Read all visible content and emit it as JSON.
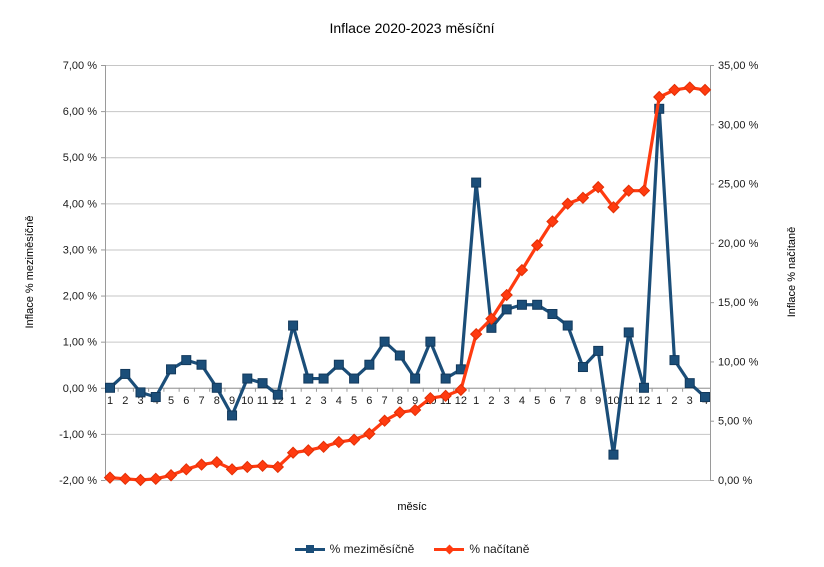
{
  "chart_data": {
    "type": "line",
    "title": "Inflace 2020-2023 měsíční",
    "xlabel": "měsíc",
    "left_axis": {
      "title": "Inflace % meziměsíčně",
      "min": -2,
      "max": 7,
      "tick_labels": [
        "7,00 %",
        "6,00 %",
        "5,00 %",
        "4,00 %",
        "3,00 %",
        "2,00 %",
        "1,00 %",
        "0,00 %",
        "-1,00 %",
        "-2,00 %"
      ],
      "tick_values": [
        7,
        6,
        5,
        4,
        3,
        2,
        1,
        0,
        -1,
        -2
      ]
    },
    "right_axis": {
      "title": "Inflace % načítaně",
      "min": 0,
      "max": 35,
      "tick_labels": [
        "35,00 %",
        "30,00 %",
        "25,00 %",
        "20,00 %",
        "15,00 %",
        "10,00 %",
        "5,00 %",
        "0,00 %"
      ],
      "tick_values": [
        35,
        30,
        25,
        20,
        15,
        10,
        5,
        0
      ]
    },
    "x_labels": [
      "1",
      "2",
      "3",
      "4",
      "5",
      "6",
      "7",
      "8",
      "9",
      "10",
      "11",
      "12",
      "1",
      "2",
      "3",
      "4",
      "5",
      "6",
      "7",
      "8",
      "9",
      "10",
      "11",
      "12",
      "1",
      "2",
      "3",
      "4",
      "5",
      "6",
      "7",
      "8",
      "9",
      "10",
      "11",
      "12",
      "1",
      "2",
      "3",
      "4"
    ],
    "grid": true,
    "legend_position": "bottom",
    "series": [
      {
        "name": "% meziměsíčně",
        "axis": "left",
        "color": "#1b4e79",
        "marker_stroke": "#12395c",
        "marker": "square",
        "values": [
          0.0,
          0.3,
          -0.1,
          -0.2,
          0.4,
          0.6,
          0.5,
          0.0,
          -0.6,
          0.2,
          0.1,
          -0.15,
          1.35,
          0.2,
          0.2,
          0.5,
          0.2,
          0.5,
          1.0,
          0.7,
          0.2,
          1.0,
          0.2,
          0.4,
          4.45,
          1.3,
          1.7,
          1.8,
          1.8,
          1.6,
          1.35,
          0.45,
          0.8,
          -1.45,
          1.2,
          0.0,
          6.05,
          0.6,
          0.1,
          -0.2
        ]
      },
      {
        "name": "% načítaně",
        "axis": "right",
        "color": "#ff3b10",
        "marker_stroke": "#e22f04",
        "marker": "diamond",
        "values": [
          0.2,
          0.1,
          0.0,
          0.1,
          0.4,
          0.9,
          1.3,
          1.5,
          0.9,
          1.1,
          1.2,
          1.1,
          2.3,
          2.5,
          2.8,
          3.2,
          3.4,
          3.9,
          5.0,
          5.7,
          5.9,
          6.9,
          7.1,
          7.6,
          12.3,
          13.6,
          15.6,
          17.7,
          19.8,
          21.8,
          23.3,
          23.8,
          24.7,
          23.0,
          24.4,
          24.4,
          32.3,
          32.9,
          33.1,
          32.9
        ]
      }
    ],
    "style": {
      "gridline_color": "#c6c6c6",
      "axis_line_color": "#9a9a9a",
      "tick_text_color": "#1a1a1a"
    }
  }
}
